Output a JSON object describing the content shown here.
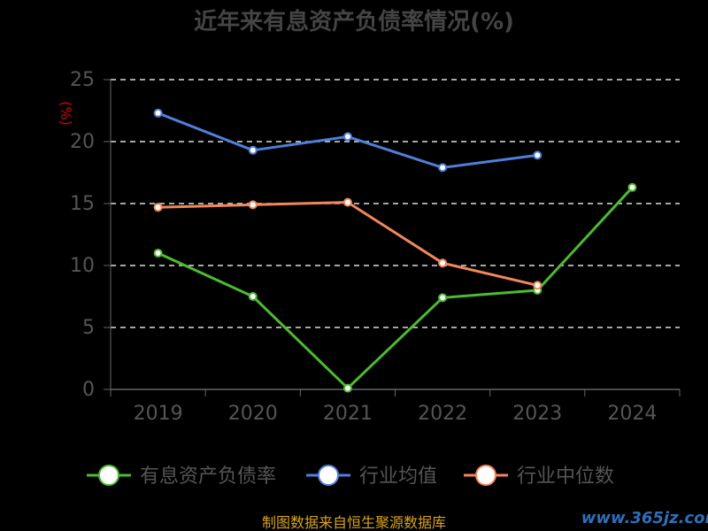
{
  "chart_data": {
    "type": "line",
    "title": "近年来有息资产负债率情况(%)",
    "ylabel": "(%)",
    "xlabel": "",
    "categories": [
      "2019",
      "2020",
      "2021",
      "2022",
      "2023",
      "2024"
    ],
    "ylim": [
      0,
      25
    ],
    "yticks": [
      0,
      5,
      10,
      15,
      20,
      25
    ],
    "grid": true,
    "legend_position": "bottom",
    "series": [
      {
        "name": "有息资产负债率",
        "color": "#4cbb2f",
        "values": [
          11.0,
          7.5,
          0.1,
          7.4,
          8.0,
          16.3
        ]
      },
      {
        "name": "行业均值",
        "color": "#4f7fd9",
        "values": [
          22.3,
          19.3,
          20.4,
          17.9,
          18.9,
          null
        ]
      },
      {
        "name": "行业中位数",
        "color": "#f2875a",
        "values": [
          14.7,
          14.9,
          15.1,
          10.2,
          8.4,
          null
        ]
      }
    ]
  },
  "footer": {
    "source": "制图数据来自恒生聚源数据库",
    "watermark": "www.365jz.com"
  }
}
